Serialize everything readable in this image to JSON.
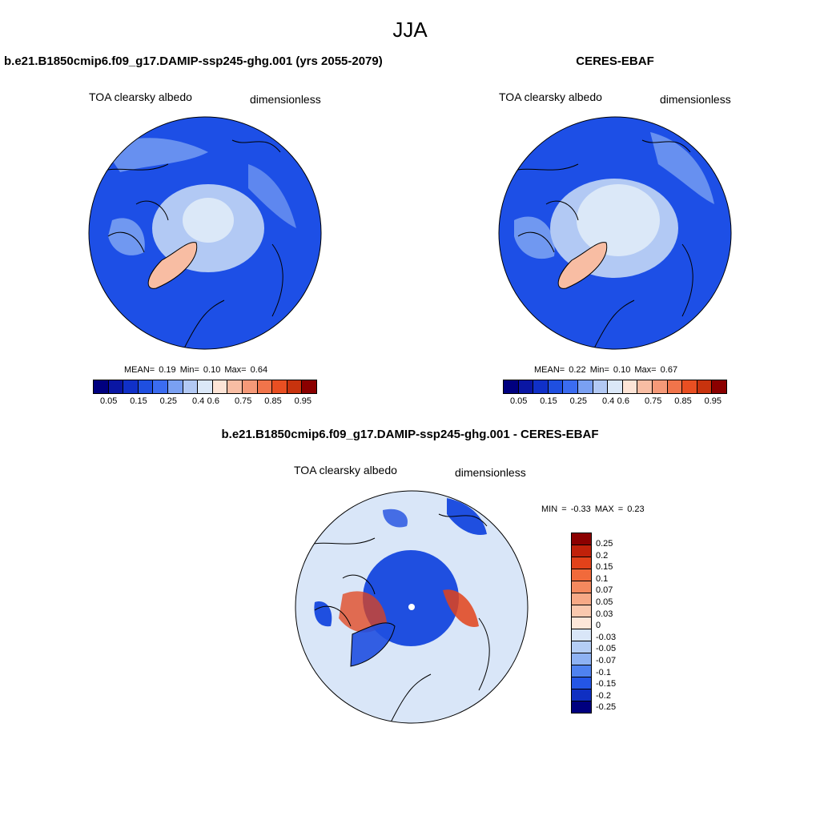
{
  "season": "JJA",
  "panels": {
    "model": {
      "title": "b.e21.B1850cmip6.f09_g17.DAMIP-ssp245-ghg.001 (yrs 2055-2079)",
      "variable": "TOA clearsky albedo",
      "units": "dimensionless",
      "stats": "MEAN=   0.19  Min=   0.10  Max=   0.64"
    },
    "obs": {
      "title": "CERES-EBAF",
      "variable": "TOA clearsky albedo",
      "units": "dimensionless",
      "stats": "MEAN=   0.22  Min=   0.10  Max=   0.67"
    },
    "diff": {
      "title": "b.e21.B1850cmip6.f09_g17.DAMIP-ssp245-ghg.001 - CERES-EBAF",
      "variable": "TOA clearsky albedo",
      "units": "dimensionless",
      "stats": "MIN =  -0.33 MAX =   0.23"
    }
  },
  "colorbar": {
    "ticks": [
      "0.05",
      "0.15",
      "0.25",
      "0.4",
      "0.6",
      "0.75",
      "0.85",
      "0.95"
    ],
    "colors": [
      "#00007f",
      "#0a16a4",
      "#1030c8",
      "#1f4fe0",
      "#3b6cf0",
      "#7aa0f2",
      "#b2c9f4",
      "#dbe8f8",
      "#fde4d6",
      "#f8bda3",
      "#f59978",
      "#f1744b",
      "#e94f22",
      "#c8330e",
      "#8b0000"
    ]
  },
  "diff_colorbar": {
    "ticks": [
      "0.25",
      "0.2",
      "0.15",
      "0.1",
      "0.07",
      "0.05",
      "0.03",
      "0",
      "-0.03",
      "-0.05",
      "-0.07",
      "-0.1",
      "-0.15",
      "-0.2",
      "-0.25"
    ],
    "colors": [
      "#8b0000",
      "#c0210a",
      "#e2421a",
      "#f16a3b",
      "#f4895e",
      "#f7a986",
      "#fac8ae",
      "#fde6d9",
      "#d9e6f8",
      "#b4cdf5",
      "#8eb2f3",
      "#4f82f0",
      "#2456e6",
      "#0f2fc2",
      "#00007f"
    ]
  },
  "map_colors": {
    "ocean": "#1d4fe6",
    "sea_ice_low": "#b2c9f4",
    "sea_ice_high": "#dbe8f8",
    "greenland": "#f8bda3",
    "mid": "#7aa0f2",
    "diff_bg": "#d9e6f8",
    "diff_neg": "#1f4fe0",
    "diff_pos": "#e2421a"
  }
}
